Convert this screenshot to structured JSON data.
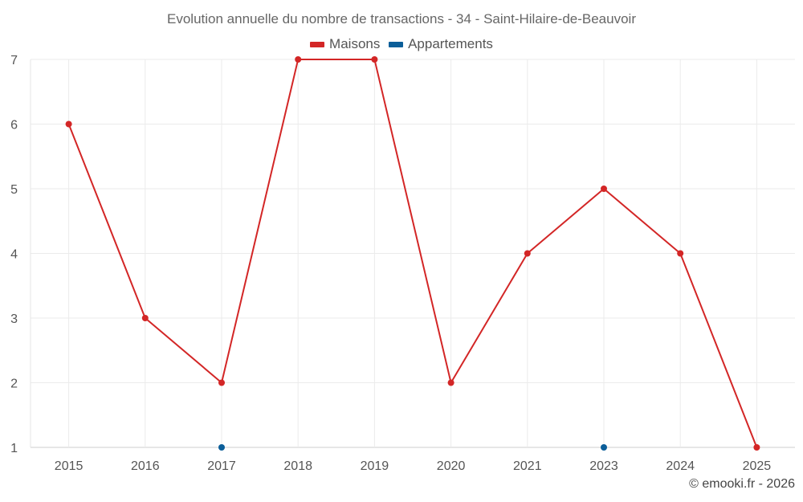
{
  "chart_data": {
    "type": "line",
    "title": "Evolution annuelle du nombre de transactions - 34 - Saint-Hilaire-de-Beauvoir",
    "categories": [
      "2015",
      "2016",
      "2017",
      "2018",
      "2019",
      "2020",
      "2021",
      "2023",
      "2024",
      "2025"
    ],
    "series": [
      {
        "name": "Maisons",
        "color": "#d32626",
        "values": [
          6,
          3,
          2,
          7,
          7,
          2,
          4,
          5,
          4,
          1
        ]
      },
      {
        "name": "Appartements",
        "color": "#0b5e99",
        "values": [
          null,
          null,
          1,
          null,
          null,
          null,
          null,
          1,
          null,
          null
        ]
      }
    ],
    "y_ticks": [
      "1",
      "2",
      "3",
      "4",
      "5",
      "6",
      "7"
    ],
    "ylim": [
      1,
      7
    ],
    "grid": true,
    "legend_position": "top-center"
  },
  "credit": "© emooki.fr - 2026"
}
